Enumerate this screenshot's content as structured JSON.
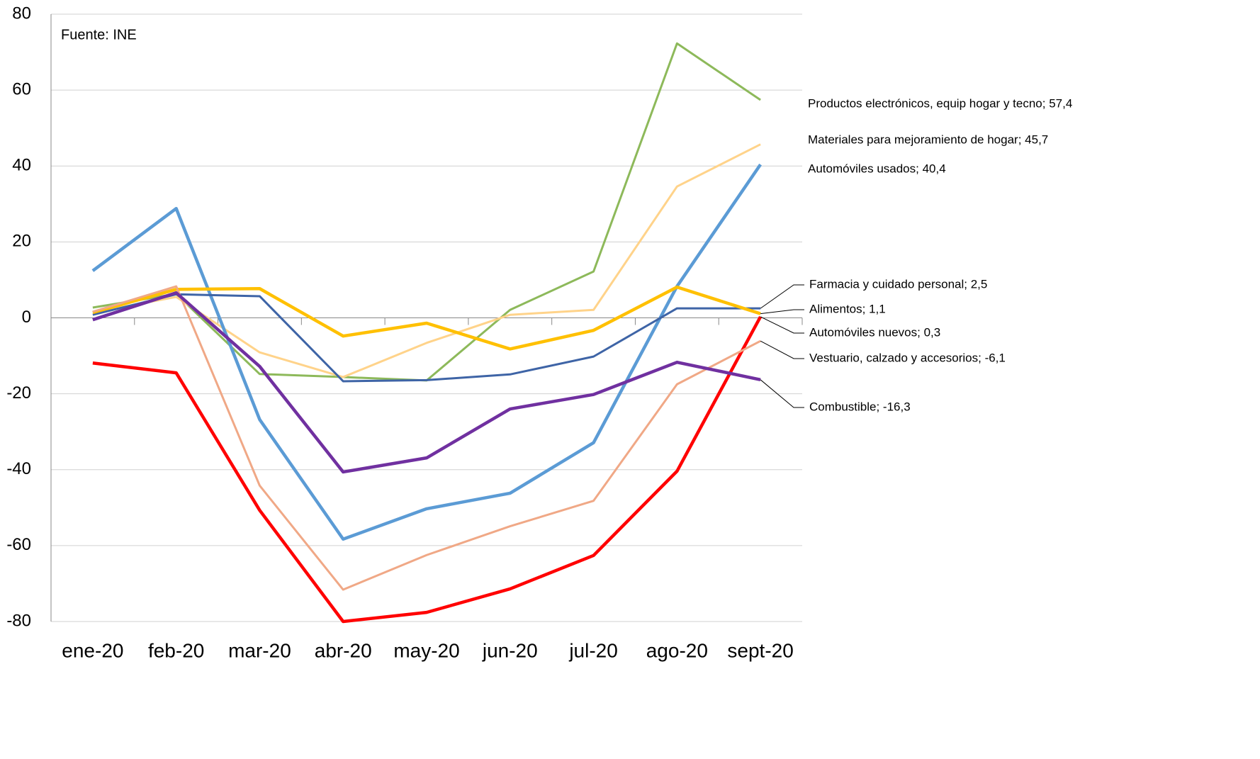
{
  "chart_data": {
    "type": "line",
    "annotation": "Fuente: INE",
    "categories": [
      "ene-20",
      "feb-20",
      "mar-20",
      "abr-20",
      "may-20",
      "jun-20",
      "jul-20",
      "ago-20",
      "sept-20"
    ],
    "ylim": [
      -80,
      80
    ],
    "yticks": [
      -80,
      -60,
      -40,
      -20,
      0,
      20,
      40,
      60,
      80
    ],
    "grid": true,
    "series": [
      {
        "label": "Productos electrónicos, equip hogar y tecno; 57,4",
        "color": "#8db95a",
        "values": [
          2.7,
          6.3,
          -14.8,
          -15.6,
          -16.5,
          2.1,
          12.2,
          72.3,
          57.4
        ]
      },
      {
        "label": "Materiales para mejoramiento de hogar; 45,7",
        "color": "#ffd38a",
        "values": [
          1.4,
          5.5,
          -9.1,
          -15.6,
          -6.6,
          0.8,
          2.1,
          34.6,
          45.7
        ]
      },
      {
        "label": "Automóviles usados; 40,4",
        "color": "#5b9bd5",
        "values": [
          12.4,
          28.8,
          -26.8,
          -58.3,
          -50.3,
          -46.2,
          -32.9,
          8.3,
          40.4
        ]
      },
      {
        "label": "Farmacia y cuidado personal; 2,5",
        "color": "#3e64a6",
        "values": [
          0.8,
          6.2,
          5.7,
          -16.7,
          -16.4,
          -14.9,
          -10.2,
          2.5,
          2.5
        ]
      },
      {
        "label": "Alimentos; 1,1",
        "color": "#ffc000",
        "values": [
          1.4,
          7.5,
          7.7,
          -4.8,
          -1.4,
          -8.2,
          -3.3,
          8.1,
          1.1
        ]
      },
      {
        "label": "Automóviles nuevos; 0,3",
        "color": "#ff0000",
        "values": [
          -11.9,
          -14.5,
          -50.7,
          -80.0,
          -77.6,
          -71.4,
          -62.6,
          -40.4,
          0.3
        ]
      },
      {
        "label": "Vestuario, calzado y accesorios; -6,1",
        "color": "#f0a886",
        "values": [
          1.6,
          8.3,
          -44.2,
          -71.6,
          -62.5,
          -54.9,
          -48.2,
          -17.5,
          -6.1
        ]
      },
      {
        "label": "Combustible; -16,3",
        "color": "#7030a0",
        "values": [
          -0.5,
          6.6,
          -12.8,
          -40.6,
          -36.9,
          -24.0,
          -20.2,
          -11.7,
          -16.3
        ]
      }
    ]
  }
}
